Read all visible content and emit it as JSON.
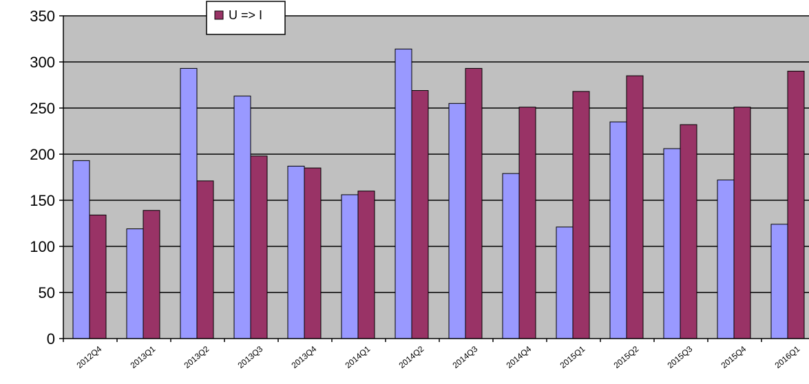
{
  "chart_data": {
    "type": "bar",
    "categories": [
      "2012Q4",
      "2013Q1",
      "2013Q2",
      "2013Q3",
      "2013Q4",
      "2014Q1",
      "2014Q2",
      "2014Q3",
      "2014Q4",
      "2015Q1",
      "2015Q2",
      "2015Q3",
      "2015Q4",
      "2016Q1"
    ],
    "series": [
      {
        "values": [
          193,
          119,
          293,
          263,
          187,
          156,
          314,
          255,
          179,
          121,
          235,
          206,
          172,
          124
        ],
        "color": "#9999ff"
      },
      {
        "name": "U => I",
        "values": [
          134,
          139,
          171,
          198,
          185,
          160,
          269,
          293,
          251,
          268,
          285,
          232,
          251,
          290
        ],
        "color": "#993366"
      }
    ],
    "ylim": [
      0,
      350
    ],
    "yticks": [
      0,
      50,
      100,
      150,
      200,
      250,
      300,
      350
    ],
    "grid": true,
    "plot_background": "#c0c0c0",
    "legend_position": "top-center"
  }
}
